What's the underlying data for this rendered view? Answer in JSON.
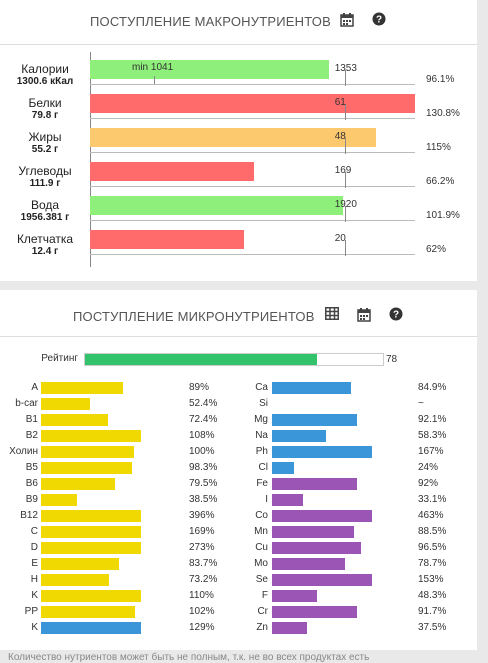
{
  "colors": {
    "green": "#8ef07a",
    "red": "#ff6b6b",
    "orange": "#fdc96f",
    "yellow": "#f0d900",
    "blue": "#3b95d9",
    "purple": "#9b55b5",
    "rating": "#33c46b"
  },
  "macro": {
    "title": "ПОСТУПЛЕНИЕ МАКРОНУТРИЕНТОВ",
    "icons": [
      "calendar-icon",
      "help-icon"
    ],
    "min_label": "min 1041",
    "rows": [
      {
        "name": "Калории",
        "amount": "1300.6 кКал",
        "value": "1353",
        "percent": "96.1%",
        "pct": 96.1,
        "color": "green"
      },
      {
        "name": "Белки",
        "amount": "79.8 г",
        "value": "61",
        "percent": "130.8%",
        "pct": 130.8,
        "color": "red"
      },
      {
        "name": "Жиры",
        "amount": "55.2 г",
        "value": "48",
        "percent": "115%",
        "pct": 115,
        "color": "orange"
      },
      {
        "name": "Углеводы",
        "amount": "111.9 г",
        "value": "169",
        "percent": "66.2%",
        "pct": 66.2,
        "color": "red"
      },
      {
        "name": "Вода",
        "amount": "1956.381 г",
        "value": "1920",
        "percent": "101.9%",
        "pct": 101.9,
        "color": "green"
      },
      {
        "name": "Клетчатка",
        "amount": "12.4 г",
        "value": "20",
        "percent": "62%",
        "pct": 62,
        "color": "red"
      }
    ]
  },
  "micro": {
    "title": "ПОСТУПЛЕНИЕ МИКРОНУТРИЕНТОВ",
    "icons": [
      "table-icon",
      "calendar-icon",
      "help-icon"
    ],
    "rating_label": "Рейтинг",
    "rating_value": "78",
    "rating": 78,
    "left": [
      {
        "name": "A",
        "percent": "89%",
        "pct": 89,
        "color": "yellow"
      },
      {
        "name": "b-car",
        "percent": "52.4%",
        "pct": 52.4,
        "color": "yellow"
      },
      {
        "name": "B1",
        "percent": "72.4%",
        "pct": 72.4,
        "color": "yellow"
      },
      {
        "name": "B2",
        "percent": "108%",
        "pct": 108,
        "color": "yellow"
      },
      {
        "name": "Холин",
        "percent": "100%",
        "pct": 100,
        "color": "yellow"
      },
      {
        "name": "B5",
        "percent": "98.3%",
        "pct": 98.3,
        "color": "yellow"
      },
      {
        "name": "B6",
        "percent": "79.5%",
        "pct": 79.5,
        "color": "yellow"
      },
      {
        "name": "B9",
        "percent": "38.5%",
        "pct": 38.5,
        "color": "yellow"
      },
      {
        "name": "B12",
        "percent": "396%",
        "pct": 396,
        "color": "yellow"
      },
      {
        "name": "C",
        "percent": "169%",
        "pct": 169,
        "color": "yellow"
      },
      {
        "name": "D",
        "percent": "273%",
        "pct": 273,
        "color": "yellow"
      },
      {
        "name": "E",
        "percent": "83.7%",
        "pct": 83.7,
        "color": "yellow"
      },
      {
        "name": "H",
        "percent": "73.2%",
        "pct": 73.2,
        "color": "yellow"
      },
      {
        "name": "K",
        "percent": "110%",
        "pct": 110,
        "color": "yellow"
      },
      {
        "name": "PP",
        "percent": "102%",
        "pct": 102,
        "color": "yellow"
      },
      {
        "name": "K",
        "percent": "129%",
        "pct": 129,
        "color": "blue"
      }
    ],
    "right": [
      {
        "name": "Ca",
        "percent": "84.9%",
        "pct": 84.9,
        "color": "blue"
      },
      {
        "name": "Si",
        "percent": "~",
        "pct": 0,
        "color": "blue"
      },
      {
        "name": "Mg",
        "percent": "92.1%",
        "pct": 92.1,
        "color": "blue"
      },
      {
        "name": "Na",
        "percent": "58.3%",
        "pct": 58.3,
        "color": "blue"
      },
      {
        "name": "Ph",
        "percent": "167%",
        "pct": 167,
        "color": "blue"
      },
      {
        "name": "Cl",
        "percent": "24%",
        "pct": 24,
        "color": "blue"
      },
      {
        "name": "Fe",
        "percent": "92%",
        "pct": 92,
        "color": "purple"
      },
      {
        "name": "I",
        "percent": "33.1%",
        "pct": 33.1,
        "color": "purple"
      },
      {
        "name": "Co",
        "percent": "463%",
        "pct": 463,
        "color": "purple"
      },
      {
        "name": "Mn",
        "percent": "88.5%",
        "pct": 88.5,
        "color": "purple"
      },
      {
        "name": "Cu",
        "percent": "96.5%",
        "pct": 96.5,
        "color": "purple"
      },
      {
        "name": "Mo",
        "percent": "78.7%",
        "pct": 78.7,
        "color": "purple"
      },
      {
        "name": "Se",
        "percent": "153%",
        "pct": 153,
        "color": "purple"
      },
      {
        "name": "F",
        "percent": "48.3%",
        "pct": 48.3,
        "color": "purple"
      },
      {
        "name": "Cr",
        "percent": "91.7%",
        "pct": 91.7,
        "color": "purple"
      },
      {
        "name": "Zn",
        "percent": "37.5%",
        "pct": 37.5,
        "color": "purple"
      }
    ]
  },
  "footer": "Количество нутриентов может быть не полным, т.к. не во всех продуктах есть"
}
